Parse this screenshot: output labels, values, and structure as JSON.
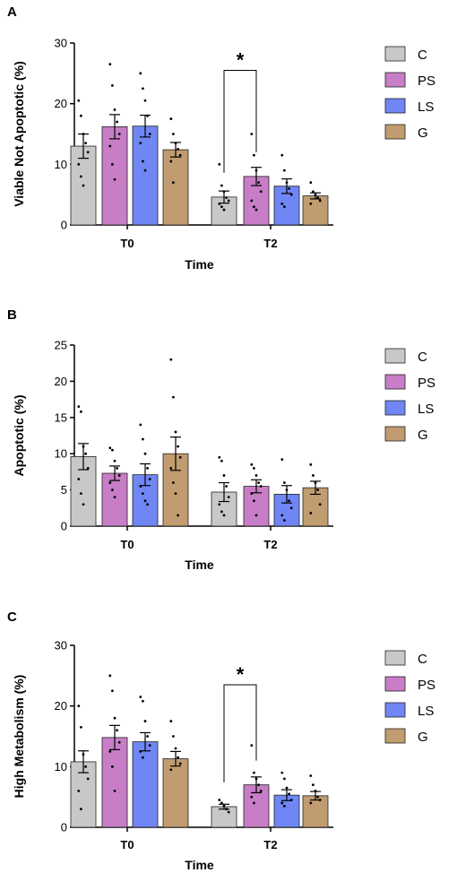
{
  "colors": {
    "C": "#c8c8c8",
    "PS": "#c77ec6",
    "LS": "#6f86f4",
    "G": "#c19c70"
  },
  "legend": [
    "C",
    "PS",
    "LS",
    "G"
  ],
  "chart_data": [
    {
      "type": "bar",
      "panel": "A",
      "xlabel": "Time",
      "ylabel": "Viable Not Apoptotic (%)",
      "ylim": [
        0,
        30
      ],
      "yticks": [
        0,
        10,
        20,
        30
      ],
      "categories": [
        "T0",
        "T2"
      ],
      "series": [
        {
          "name": "C",
          "values": [
            13.0,
            4.6
          ],
          "errors": [
            2.0,
            1.0
          ],
          "points": [
            [
              20.5,
              18.0,
              15.0,
              13.5,
              12.0,
              10.0,
              8.0,
              6.5
            ],
            [
              10.0,
              6.5,
              5.5,
              4.5,
              4.0,
              3.5,
              3.0,
              2.5
            ]
          ]
        },
        {
          "name": "PS",
          "values": [
            16.2,
            8.0
          ],
          "errors": [
            2.0,
            1.5
          ],
          "points": [
            [
              26.5,
              23.0,
              19.0,
              17.0,
              15.0,
              13.0,
              10.0,
              7.5
            ],
            [
              15.0,
              11.5,
              9.0,
              7.0,
              5.5,
              4.0,
              3.0,
              2.5
            ]
          ]
        },
        {
          "name": "LS",
          "values": [
            16.3,
            6.4
          ],
          "errors": [
            1.8,
            1.2
          ],
          "points": [
            [
              25.0,
              22.5,
              20.5,
              18.0,
              15.0,
              13.5,
              10.5,
              9.0
            ],
            [
              11.5,
              9.0,
              7.0,
              6.0,
              5.0,
              3.5,
              3.0
            ]
          ]
        },
        {
          "name": "G",
          "values": [
            12.4,
            4.8
          ],
          "errors": [
            1.2,
            0.5
          ],
          "points": [
            [
              17.5,
              15.0,
              13.5,
              12.5,
              11.5,
              10.5,
              7.0
            ],
            [
              7.0,
              5.5,
              5.0,
              4.5,
              4.0,
              3.5
            ]
          ]
        }
      ],
      "significance": {
        "from": [
          "T2",
          "C"
        ],
        "to": [
          "T2",
          "PS"
        ],
        "y": 25.5,
        "label": "*"
      }
    },
    {
      "type": "bar",
      "panel": "B",
      "xlabel": "Time",
      "ylabel": "Apoptotic (%)",
      "ylim": [
        0,
        25
      ],
      "yticks": [
        0,
        5,
        10,
        15,
        20,
        25
      ],
      "categories": [
        "T0",
        "T2"
      ],
      "series": [
        {
          "name": "C",
          "values": [
            9.6,
            4.7
          ],
          "errors": [
            1.8,
            1.3
          ],
          "points": [
            [
              16.5,
              15.8,
              11.0,
              10.0,
              8.0,
              6.5,
              4.5,
              3.0
            ],
            [
              9.5,
              9.0,
              7.0,
              5.5,
              4.0,
              3.0,
              2.0,
              1.5
            ]
          ]
        },
        {
          "name": "PS",
          "values": [
            7.3,
            5.5
          ],
          "errors": [
            1.0,
            0.9
          ],
          "points": [
            [
              10.8,
              10.5,
              9.0,
              8.0,
              7.0,
              6.0,
              5.0,
              4.0
            ],
            [
              8.5,
              8.0,
              7.0,
              6.0,
              5.5,
              4.5,
              3.5,
              1.5
            ]
          ]
        },
        {
          "name": "LS",
          "values": [
            7.1,
            4.4
          ],
          "errors": [
            1.5,
            1.2
          ],
          "points": [
            [
              14.0,
              12.0,
              10.0,
              8.0,
              6.5,
              5.5,
              4.5,
              3.5,
              3.0
            ],
            [
              9.2,
              6.0,
              5.0,
              3.5,
              2.5,
              1.5,
              0.8
            ]
          ]
        },
        {
          "name": "G",
          "values": [
            10.0,
            5.3
          ],
          "errors": [
            2.3,
            0.9
          ],
          "points": [
            [
              23.0,
              17.8,
              13.0,
              11.0,
              9.5,
              8.0,
              6.0,
              4.5,
              1.5
            ],
            [
              8.5,
              7.0,
              6.0,
              5.0,
              3.0,
              1.8
            ]
          ]
        }
      ]
    },
    {
      "type": "bar",
      "panel": "C",
      "xlabel": "Time",
      "ylabel": "High Metabolism (%)",
      "ylim": [
        0,
        30
      ],
      "yticks": [
        0,
        10,
        20,
        30
      ],
      "categories": [
        "T0",
        "T2"
      ],
      "series": [
        {
          "name": "C",
          "values": [
            10.8,
            3.4
          ],
          "errors": [
            1.8,
            0.4
          ],
          "points": [
            [
              20.0,
              16.5,
              12.0,
              10.0,
              8.0,
              6.0,
              3.0
            ],
            [
              4.5,
              4.0,
              3.5,
              3.0,
              2.5
            ]
          ]
        },
        {
          "name": "PS",
          "values": [
            14.8,
            7.0
          ],
          "errors": [
            2.0,
            1.3
          ],
          "points": [
            [
              25.0,
              22.5,
              18.0,
              16.0,
              14.0,
              12.5,
              10.0,
              6.0
            ],
            [
              13.5,
              9.0,
              8.0,
              7.0,
              6.0,
              5.0,
              4.0
            ]
          ]
        },
        {
          "name": "LS",
          "values": [
            14.1,
            5.3
          ],
          "errors": [
            1.5,
            0.9
          ],
          "points": [
            [
              21.5,
              20.8,
              17.5,
              15.0,
              13.5,
              12.5,
              11.5
            ],
            [
              9.0,
              8.0,
              6.5,
              5.5,
              4.5,
              4.0,
              3.5
            ]
          ]
        },
        {
          "name": "G",
          "values": [
            11.3,
            5.2
          ],
          "errors": [
            1.2,
            0.7
          ],
          "points": [
            [
              17.5,
              15.0,
              13.0,
              11.5,
              10.5,
              9.5
            ],
            [
              8.5,
              7.0,
              6.0,
              5.0,
              4.5,
              4.0
            ]
          ]
        }
      ],
      "significance": {
        "from": [
          "T2",
          "C"
        ],
        "to": [
          "T2",
          "PS"
        ],
        "y": 23.5,
        "label": "*"
      }
    }
  ]
}
